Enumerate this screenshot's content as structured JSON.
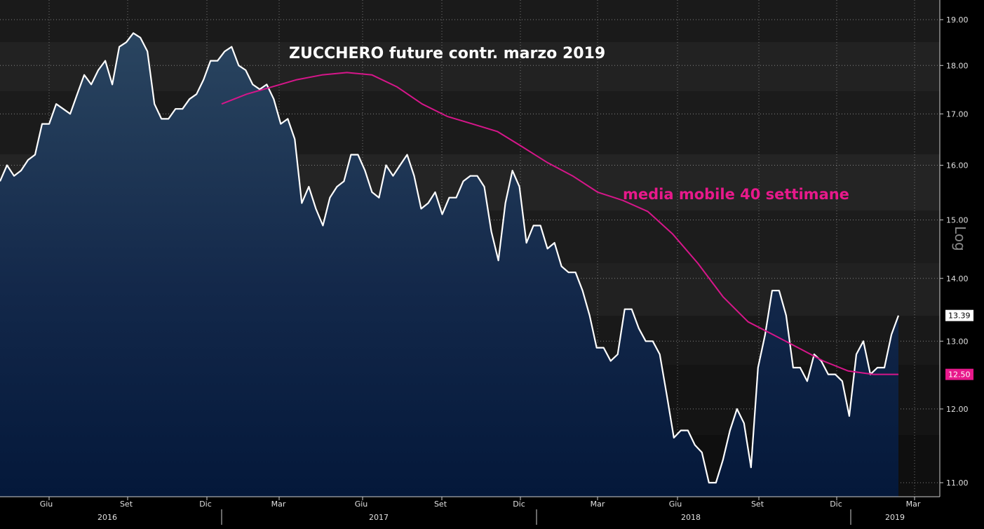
{
  "chart_data": {
    "type": "line",
    "title": "ZUCCHERO future contr. marzo 2019",
    "scale_label": "Log",
    "y_scale": "log",
    "ylim": [
      10.8,
      19.2
    ],
    "y_ticks": [
      "19.00",
      "18.00",
      "17.00",
      "16.00",
      "15.00",
      "14.00",
      "13.00",
      "12.00",
      "11.00"
    ],
    "x_tick_labels": [
      "Giu",
      "Set",
      "Dic",
      "Mar",
      "Giu",
      "Set",
      "Dic",
      "Mar",
      "Giu",
      "Set",
      "Dic",
      "Mar"
    ],
    "year_labels": [
      "2016",
      "2017",
      "2018",
      "2019"
    ],
    "grid": true,
    "colors": {
      "price": "#ffffff",
      "moving_average": "#d6168a",
      "background": "#000000",
      "badge_ma": "#e8198b"
    },
    "series": [
      {
        "name": "ZUCCHERO future contr. marzo 2019",
        "last_value": "13.39",
        "values": [
          15.7,
          16.0,
          15.8,
          15.9,
          16.1,
          16.2,
          16.8,
          16.8,
          17.2,
          17.1,
          17.0,
          17.4,
          17.8,
          17.6,
          17.9,
          18.1,
          17.6,
          18.4,
          18.5,
          18.7,
          18.6,
          18.3,
          17.2,
          16.9,
          16.9,
          17.1,
          17.1,
          17.3,
          17.4,
          17.7,
          18.1,
          18.1,
          18.3,
          18.4,
          18.0,
          17.9,
          17.6,
          17.5,
          17.6,
          17.3,
          16.8,
          16.9,
          16.5,
          15.3,
          15.6,
          15.2,
          14.9,
          15.4,
          15.6,
          15.7,
          16.2,
          16.2,
          15.9,
          15.5,
          15.4,
          16.0,
          15.8,
          16.0,
          16.2,
          15.8,
          15.2,
          15.3,
          15.5,
          15.1,
          15.4,
          15.4,
          15.7,
          15.8,
          15.8,
          15.6,
          14.8,
          14.3,
          15.3,
          15.9,
          15.6,
          14.6,
          14.9,
          14.9,
          14.5,
          14.6,
          14.2,
          14.1,
          14.1,
          13.8,
          13.4,
          12.9,
          12.9,
          12.7,
          12.8,
          13.5,
          13.5,
          13.2,
          13.0,
          13.0,
          12.8,
          12.2,
          11.6,
          11.7,
          11.7,
          11.5,
          11.4,
          11.0,
          11.0,
          11.3,
          11.7,
          12.0,
          11.8,
          11.2,
          12.6,
          13.1,
          13.8,
          13.8,
          13.4,
          12.6,
          12.6,
          12.4,
          12.8,
          12.7,
          12.5,
          12.5,
          12.4,
          11.9,
          12.8,
          13.0,
          12.5,
          12.6,
          12.6,
          13.1,
          13.4
        ]
      },
      {
        "name": "media mobile 40 settimane",
        "last_value": "12.50",
        "values": [
          17.2,
          17.4,
          17.55,
          17.7,
          17.8,
          17.85,
          17.8,
          17.55,
          17.2,
          16.95,
          16.8,
          16.65,
          16.35,
          16.05,
          15.8,
          15.5,
          15.35,
          15.15,
          14.75,
          14.25,
          13.7,
          13.3,
          13.1,
          12.9,
          12.7,
          12.55,
          12.5,
          12.5
        ]
      }
    ],
    "annotations": [
      "ZUCCHERO future contr. marzo 2019",
      "media mobile 40 settimane"
    ]
  }
}
